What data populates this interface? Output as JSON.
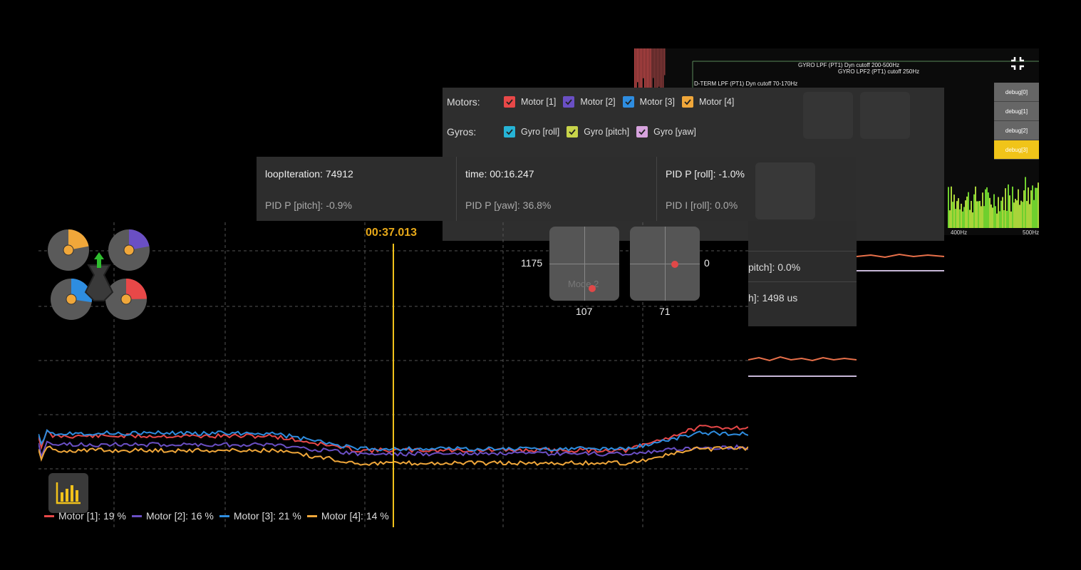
{
  "spectrum": {
    "filter_labels": [
      "GYRO LPF (PT1) Dyn cutoff 200-500Hz",
      "GYRO LPF2 (PT1) cutoff 250Hz",
      "D-TERM LPF (PT1) Dyn cutoff 70-170Hz"
    ],
    "debug_buttons": [
      "debug[0]",
      "debug[1]",
      "debug[2]",
      "debug[3]"
    ],
    "active_debug": "debug[3]",
    "freq_ticks": [
      "400Hz",
      "500Hz"
    ]
  },
  "selector": {
    "motors_label": "Motors:",
    "motors": [
      {
        "label": "Motor [1]",
        "color": "#e84848"
      },
      {
        "label": "Motor [2]",
        "color": "#6a4fc4"
      },
      {
        "label": "Motor [3]",
        "color": "#2e8de0"
      },
      {
        "label": "Motor [4]",
        "color": "#f0a73a"
      }
    ],
    "gyros_label": "Gyros:",
    "gyros": [
      {
        "label": "Gyro [roll]",
        "color": "#26b4d6"
      },
      {
        "label": "Gyro [pitch]",
        "color": "#c8d44a"
      },
      {
        "label": "Gyro [yaw]",
        "color": "#d7a3de"
      }
    ]
  },
  "info": {
    "loop_iteration": "loopIteration: 74912",
    "pid_p_pitch": "PID P [pitch]: -0.9%",
    "time": "time: 00:16.247",
    "pid_p_yaw": "PID P [yaw]: 36.8%",
    "pid_p_roll": "PID P [roll]: -1.0%",
    "pid_i_roll": "PID I [roll]: 0.0%"
  },
  "middle": {
    "line1": "pitch]: 0.0%",
    "line2": "h]: 1498 us"
  },
  "sticks": {
    "left_y": "1175",
    "left_x": "107",
    "right_y": "0",
    "right_x": "71",
    "mode_text": "Mode 2"
  },
  "main": {
    "cursor_time": "00:37.013",
    "legend": [
      {
        "label": "Motor [1]: 19 %",
        "color": "#e84848"
      },
      {
        "label": "Motor [2]: 16 %",
        "color": "#6a4fc4"
      },
      {
        "label": "Motor [3]: 21 %",
        "color": "#2e8de0"
      },
      {
        "label": "Motor [4]: 14 %",
        "color": "#f0a73a"
      }
    ],
    "motor_fill": [
      {
        "name": "motor-1",
        "color": "#f0a73a",
        "level": 0.14
      },
      {
        "name": "motor-2",
        "color": "#6a4fc4",
        "level": 0.16
      },
      {
        "name": "motor-3",
        "color": "#2e8de0",
        "level": 0.21
      },
      {
        "name": "motor-4",
        "color": "#e84848",
        "level": 0.19
      }
    ]
  },
  "colors": {
    "accent": "#e8a919",
    "cursor": "#f2c21b",
    "debug_active": "#f0c419"
  }
}
